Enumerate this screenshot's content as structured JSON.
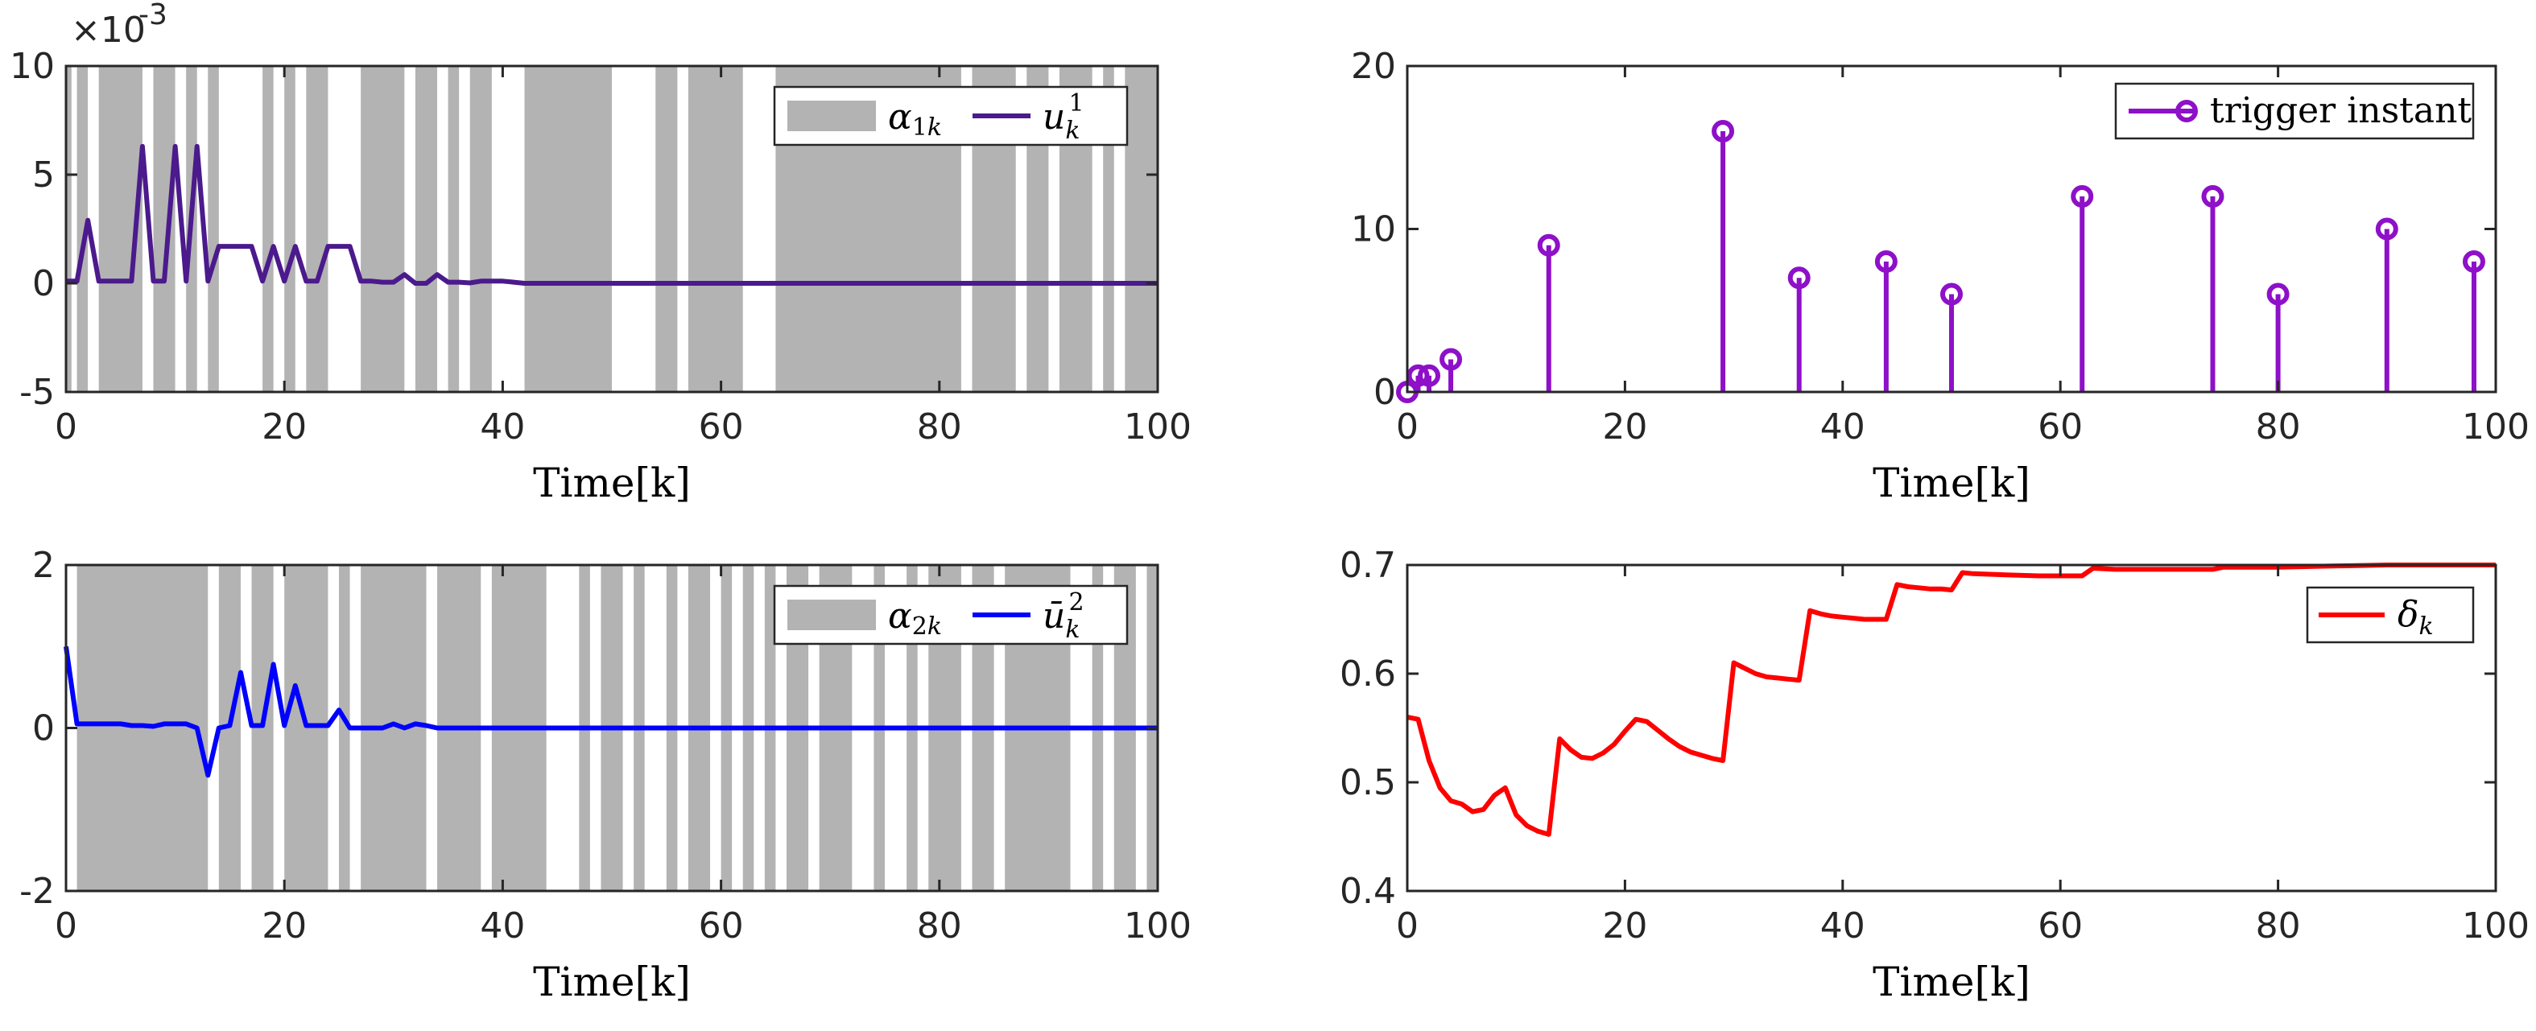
{
  "chart_data": [
    {
      "id": "p1",
      "type": "line",
      "xlabel": "Time[k]",
      "ylabel": "",
      "xlim": [
        0,
        100
      ],
      "ylim": [
        -5,
        10
      ],
      "xticks": [
        0,
        20,
        40,
        60,
        80,
        100
      ],
      "yticks": [
        -5,
        0,
        5,
        10
      ],
      "exponent": "×10-3",
      "bands_legend": "α1k",
      "series": [
        {
          "name": "u1k",
          "color": "#4b1a8c",
          "x": [
            0,
            1,
            2,
            3,
            4,
            5,
            6,
            7,
            8,
            9,
            10,
            11,
            12,
            13,
            14,
            15,
            16,
            17,
            18,
            19,
            20,
            21,
            22,
            23,
            24,
            25,
            26,
            27,
            28,
            29,
            30,
            31,
            32,
            33,
            34,
            35,
            36,
            37,
            38,
            39,
            40,
            41,
            42,
            43,
            44,
            45,
            46,
            47,
            48,
            49,
            50,
            55,
            60,
            65,
            70,
            75,
            80,
            85,
            90,
            95,
            100
          ],
          "values": [
            0.1,
            0.1,
            2.9,
            0.1,
            0.1,
            0.1,
            0.1,
            6.3,
            0.1,
            0.1,
            6.3,
            0.1,
            6.3,
            0.1,
            1.7,
            1.7,
            1.7,
            1.7,
            0.1,
            1.7,
            0.1,
            1.7,
            0.1,
            0.1,
            1.7,
            1.7,
            1.7,
            0.1,
            0.1,
            0.05,
            0.05,
            0.4,
            0.0,
            0.0,
            0.4,
            0.05,
            0.05,
            0.02,
            0.1,
            0.1,
            0.1,
            0.05,
            0.0,
            0.0,
            0.0,
            0.0,
            0.0,
            0.0,
            0.0,
            0.0,
            0.0,
            0.0,
            0.0,
            0.0,
            0.0,
            0.0,
            0.0,
            0.0,
            0.0,
            0.0,
            0.0
          ]
        }
      ],
      "bands": [
        [
          0,
          0.5
        ],
        [
          1,
          2
        ],
        [
          3,
          7
        ],
        [
          8,
          10
        ],
        [
          11,
          12
        ],
        [
          13,
          14
        ],
        [
          18,
          19
        ],
        [
          20,
          21
        ],
        [
          22,
          24
        ],
        [
          27,
          31
        ],
        [
          32,
          34
        ],
        [
          35,
          36
        ],
        [
          37,
          39
        ],
        [
          42,
          50
        ],
        [
          54,
          56
        ],
        [
          57,
          62
        ],
        [
          65,
          82
        ],
        [
          83,
          87
        ],
        [
          88,
          90
        ],
        [
          91,
          94
        ],
        [
          95,
          96
        ],
        [
          97,
          100
        ]
      ]
    },
    {
      "id": "p2",
      "type": "stem",
      "xlabel": "Time[k]",
      "xlim": [
        0,
        100
      ],
      "ylim": [
        0,
        20
      ],
      "xticks": [
        0,
        20,
        40,
        60,
        80,
        100
      ],
      "yticks": [
        0,
        10,
        20
      ],
      "series": [
        {
          "name": "trigger instant",
          "color": "#8e10c8",
          "x": [
            0,
            1,
            2,
            4,
            13,
            29,
            36,
            44,
            50,
            62,
            74,
            80,
            90,
            98
          ],
          "values": [
            0,
            1,
            1,
            2,
            9,
            16,
            7,
            8,
            6,
            12,
            12,
            6,
            10,
            8
          ]
        }
      ]
    },
    {
      "id": "p3",
      "type": "line",
      "xlabel": "Time[k]",
      "xlim": [
        0,
        100
      ],
      "ylim": [
        -2,
        2
      ],
      "xticks": [
        0,
        20,
        40,
        60,
        80,
        100
      ],
      "yticks": [
        -2,
        0,
        2
      ],
      "bands_legend": "α2k",
      "series": [
        {
          "name": "u2k",
          "color": "#0000ff",
          "x": [
            0,
            1,
            2,
            3,
            4,
            5,
            6,
            7,
            8,
            9,
            10,
            11,
            12,
            13,
            14,
            15,
            16,
            17,
            18,
            19,
            20,
            21,
            22,
            23,
            24,
            25,
            26,
            27,
            28,
            29,
            30,
            31,
            32,
            33,
            34,
            35,
            36,
            37,
            38,
            39,
            40,
            50,
            60,
            70,
            80,
            90,
            100
          ],
          "values": [
            1.0,
            0.05,
            0.05,
            0.05,
            0.05,
            0.05,
            0.03,
            0.03,
            0.02,
            0.05,
            0.05,
            0.05,
            0.0,
            -0.58,
            0.0,
            0.03,
            0.68,
            0.03,
            0.03,
            0.78,
            0.03,
            0.52,
            0.03,
            0.03,
            0.03,
            0.22,
            0.0,
            0.0,
            0.0,
            0.0,
            0.05,
            0.0,
            0.05,
            0.03,
            0.0,
            0.0,
            0.0,
            0.0,
            0.0,
            0.0,
            0.0,
            0.0,
            0.0,
            0.0,
            0.0,
            0.0,
            0.0
          ]
        }
      ],
      "bands": [
        [
          1,
          13
        ],
        [
          14,
          16
        ],
        [
          17,
          19
        ],
        [
          20,
          24
        ],
        [
          25,
          26
        ],
        [
          27,
          33
        ],
        [
          34,
          38
        ],
        [
          39,
          44
        ],
        [
          47,
          48
        ],
        [
          49,
          51
        ],
        [
          52,
          53
        ],
        [
          55,
          56
        ],
        [
          57,
          59
        ],
        [
          60,
          61
        ],
        [
          62,
          63
        ],
        [
          64,
          65
        ],
        [
          66,
          68
        ],
        [
          69,
          72
        ],
        [
          74,
          75
        ],
        [
          77,
          78
        ],
        [
          79,
          82
        ],
        [
          83,
          85
        ],
        [
          86,
          92
        ],
        [
          94,
          95
        ],
        [
          96,
          98
        ],
        [
          99,
          100
        ]
      ]
    },
    {
      "id": "p4",
      "type": "line",
      "xlabel": "Time[k]",
      "xlim": [
        0,
        100
      ],
      "ylim": [
        0.4,
        0.7
      ],
      "xticks": [
        0,
        20,
        40,
        60,
        80,
        100
      ],
      "yticks": [
        0.4,
        0.5,
        0.6,
        0.7
      ],
      "series": [
        {
          "name": "δk",
          "color": "#ff0000",
          "x": [
            0,
            1,
            2,
            3,
            4,
            5,
            6,
            7,
            8,
            9,
            10,
            11,
            12,
            13,
            14,
            15,
            16,
            17,
            18,
            19,
            20,
            21,
            22,
            23,
            24,
            25,
            26,
            27,
            28,
            29,
            30,
            31,
            32,
            33,
            34,
            35,
            36,
            37,
            38,
            39,
            40,
            41,
            42,
            43,
            44,
            45,
            46,
            47,
            48,
            49,
            50,
            51,
            52,
            55,
            58,
            60,
            62,
            63,
            65,
            70,
            74,
            75,
            80,
            85,
            90,
            95,
            100
          ],
          "values": [
            0.56,
            0.558,
            0.52,
            0.495,
            0.483,
            0.48,
            0.473,
            0.475,
            0.488,
            0.495,
            0.47,
            0.46,
            0.455,
            0.452,
            0.54,
            0.53,
            0.523,
            0.522,
            0.527,
            0.535,
            0.547,
            0.558,
            0.556,
            0.548,
            0.54,
            0.533,
            0.528,
            0.525,
            0.522,
            0.52,
            0.61,
            0.605,
            0.6,
            0.597,
            0.596,
            0.595,
            0.594,
            0.658,
            0.655,
            0.653,
            0.652,
            0.651,
            0.65,
            0.65,
            0.65,
            0.682,
            0.68,
            0.679,
            0.678,
            0.678,
            0.677,
            0.693,
            0.692,
            0.691,
            0.69,
            0.69,
            0.69,
            0.697,
            0.696,
            0.696,
            0.696,
            0.698,
            0.698,
            0.699,
            0.7,
            0.7,
            0.7
          ]
        }
      ]
    }
  ]
}
